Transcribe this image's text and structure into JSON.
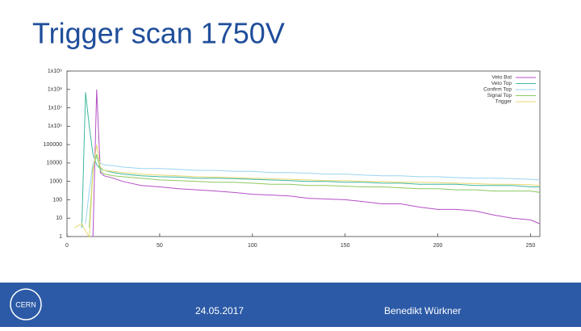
{
  "chart_data": {
    "type": "line",
    "title": "Trigger scan 1750V",
    "x": [
      0,
      4,
      8,
      10,
      12,
      14,
      16,
      18,
      20,
      25,
      30,
      40,
      50,
      60,
      70,
      80,
      90,
      100,
      110,
      120,
      130,
      140,
      150,
      160,
      170,
      180,
      190,
      200,
      210,
      220,
      230,
      240,
      250,
      255
    ],
    "series": [
      {
        "name": "Veto Bot",
        "color": "#b44fc6",
        "values": [
          null,
          null,
          null,
          null,
          null,
          1,
          100000000,
          3000,
          2000,
          1500,
          1000,
          600,
          500,
          400,
          350,
          300,
          250,
          200,
          180,
          160,
          120,
          110,
          100,
          80,
          60,
          60,
          40,
          30,
          30,
          25,
          15,
          10,
          8,
          5
        ]
      },
      {
        "name": "Veto Top",
        "color": "#3fb8a0",
        "values": [
          null,
          null,
          3,
          70000000,
          1000000,
          30000,
          8000,
          5000,
          4000,
          3000,
          2500,
          2000,
          1800,
          1700,
          1500,
          1500,
          1400,
          1300,
          1200,
          1100,
          1000,
          1000,
          900,
          900,
          800,
          800,
          700,
          700,
          700,
          600,
          600,
          600,
          500,
          500
        ]
      },
      {
        "name": "Confirm Top",
        "color": "#9ad4f0",
        "values": [
          null,
          null,
          null,
          5,
          300,
          10000,
          20000,
          10000,
          8000,
          7000,
          6000,
          5000,
          5000,
          4500,
          4000,
          4000,
          3500,
          3500,
          3000,
          3000,
          2800,
          2500,
          2500,
          2200,
          2000,
          2000,
          1800,
          1800,
          1600,
          1500,
          1500,
          1400,
          1300,
          1200
        ]
      },
      {
        "name": "Signal Top",
        "color": "#8cc860",
        "values": [
          null,
          null,
          null,
          null,
          3,
          5000,
          30000,
          4000,
          2500,
          2000,
          1800,
          1500,
          1200,
          1100,
          1000,
          900,
          900,
          800,
          700,
          700,
          600,
          600,
          550,
          500,
          500,
          450,
          400,
          400,
          350,
          350,
          300,
          300,
          300,
          250
        ]
      },
      {
        "name": "Trigger",
        "color": "#e8d870",
        "values": [
          null,
          3,
          5,
          2,
          1,
          3000,
          100000,
          6000,
          4000,
          3500,
          3000,
          2500,
          2200,
          2000,
          1800,
          1700,
          1600,
          1500,
          1400,
          1300,
          1200,
          1100,
          1100,
          1000,
          1000,
          900,
          900,
          850,
          800,
          750,
          700,
          700,
          650,
          600
        ]
      }
    ],
    "xlim": [
      0,
      255
    ],
    "xticks": [
      0,
      50,
      100,
      150,
      200,
      250
    ],
    "ylim": [
      1,
      1000000000
    ],
    "log_y": true,
    "yticks": [
      1,
      10,
      100,
      1000,
      10000,
      100000,
      {
        "value": 1000000,
        "label": "1x10⁶"
      },
      {
        "value": 10000000,
        "label": "1x10⁷"
      },
      {
        "value": 100000000,
        "label": "1x10⁸"
      },
      {
        "value": 1000000000,
        "label": "1x10⁹"
      }
    ],
    "legend": "top-right"
  },
  "footer": {
    "logo": "CERN",
    "date": "24.05.2017",
    "author": "Benedikt Würkner"
  }
}
